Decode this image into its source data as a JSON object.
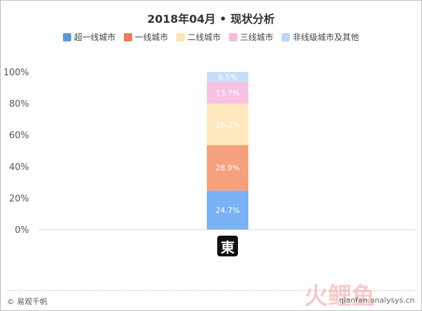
{
  "title": "2018年04月 • 现状分析",
  "legend": [
    {
      "label": "超一线城市",
      "color": "#5b9bd5"
    },
    {
      "label": "一线城市",
      "color": "#ed7d57"
    },
    {
      "label": "二线城市",
      "color": "#ffe5b0"
    },
    {
      "label": "三线城市",
      "color": "#f9b8dc"
    },
    {
      "label": "非线级城市及其他",
      "color": "#bcd8f7"
    }
  ],
  "chart_data": {
    "type": "bar",
    "stacked": true,
    "categories": [
      "東"
    ],
    "series": [
      {
        "name": "超一线城市",
        "values": [
          24.7
        ],
        "label": "24.7%",
        "color": "#7ab3f5"
      },
      {
        "name": "一线城市",
        "values": [
          28.9
        ],
        "label": "28.9%",
        "color": "#f7a07e"
      },
      {
        "name": "二线城市",
        "values": [
          26.2
        ],
        "label": "26.2%",
        "color": "#fde9bd"
      },
      {
        "name": "三线城市",
        "values": [
          13.7
        ],
        "label": "13.7%",
        "color": "#f9c2e2"
      },
      {
        "name": "非线级城市及其他",
        "values": [
          6.5
        ],
        "label": "6.5%",
        "color": "#c6def9"
      }
    ],
    "ylim": [
      0,
      100
    ],
    "yticks": [
      "0%",
      "20%",
      "40%",
      "60%",
      "80%",
      "100%"
    ],
    "grid": false
  },
  "category_logo_text": "東",
  "footer": {
    "copyright": "© 易观千帆",
    "watermark_text": "qianfan.analysys.cn",
    "watermark_logo_text": "火鲤鱼"
  }
}
